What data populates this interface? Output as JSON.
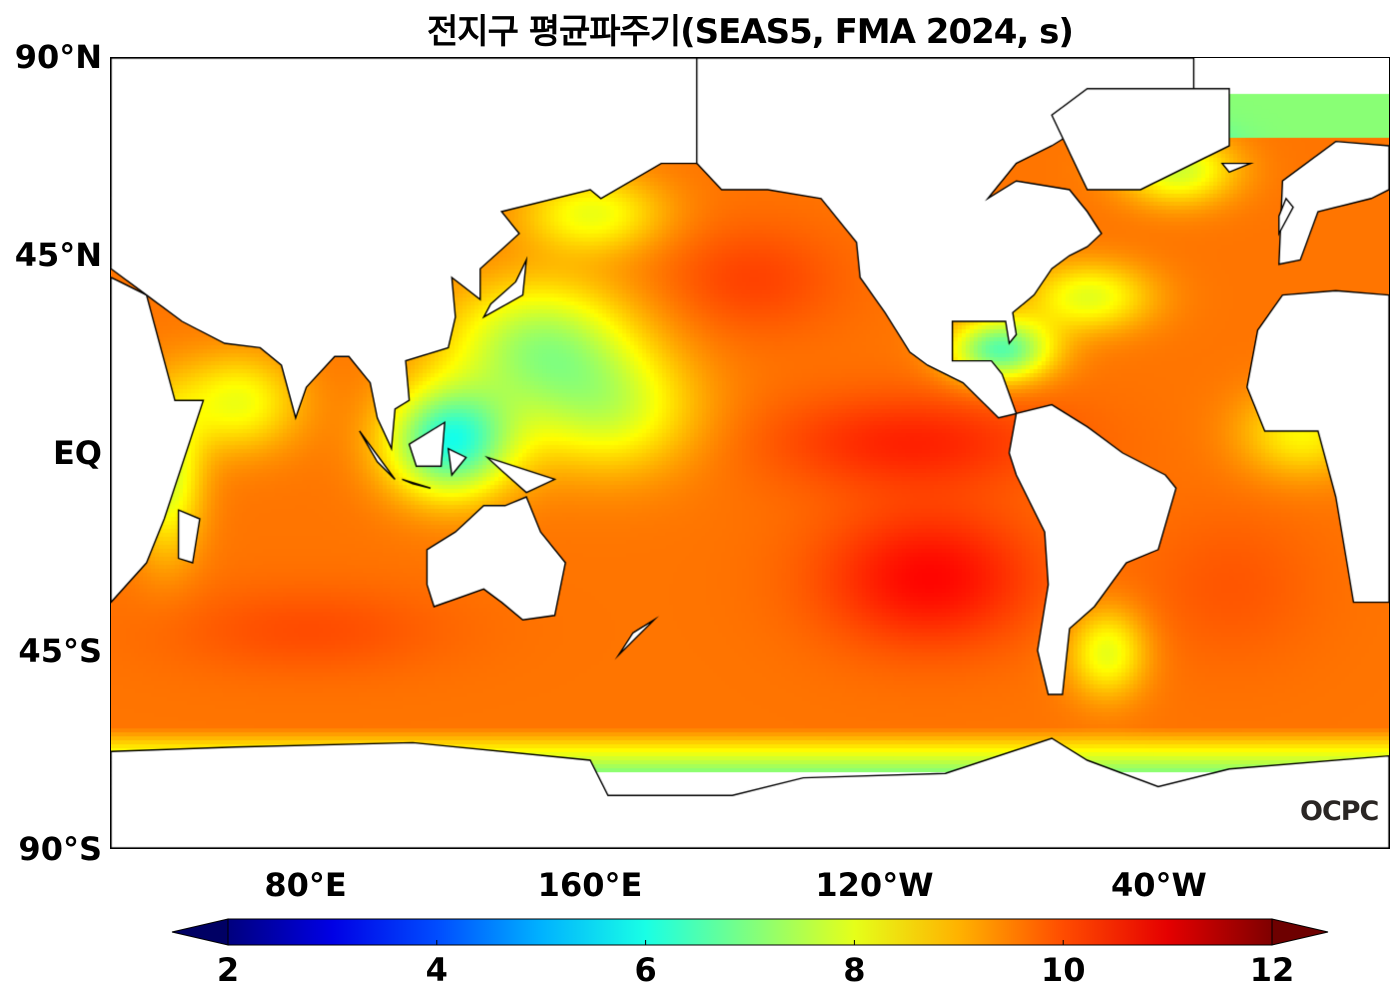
{
  "title": "전지구 평균파주기(SEAS5, FMA 2024, s)",
  "map": {
    "projection": "PlateCarree",
    "lon_range_east": [
      25,
      385
    ],
    "lat_range": [
      -90,
      90
    ],
    "land_color": "#ffffff",
    "coastline_color": "#000000"
  },
  "y_ticks": [
    {
      "label": "90°N",
      "lat": 90
    },
    {
      "label": "45°N",
      "lat": 45
    },
    {
      "label": "EQ",
      "lat": 0
    },
    {
      "label": "45°S",
      "lat": -45
    },
    {
      "label": "90°S",
      "lat": -90
    }
  ],
  "x_ticks": [
    {
      "label": "80°E",
      "lon": 80
    },
    {
      "label": "160°E",
      "lon": 160
    },
    {
      "label": "120°W",
      "lon": 240
    },
    {
      "label": "40°W",
      "lon": 320
    }
  ],
  "colorbar": {
    "colormap": "jet",
    "min": 2,
    "max": 12,
    "extend": "both",
    "ticks": [
      {
        "label": "2",
        "value": 2
      },
      {
        "label": "4",
        "value": 4
      },
      {
        "label": "6",
        "value": 6
      },
      {
        "label": "8",
        "value": 8
      },
      {
        "label": "10",
        "value": 10
      },
      {
        "label": "12",
        "value": 12
      }
    ]
  },
  "logo": "OCPC"
}
